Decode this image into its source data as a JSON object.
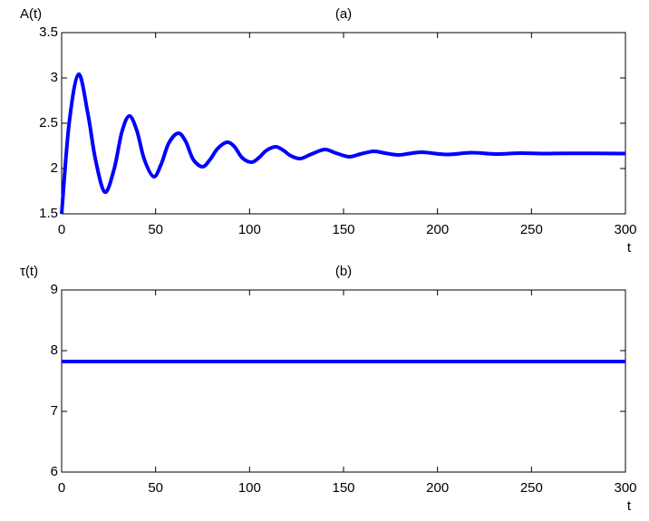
{
  "chart_data": [
    {
      "type": "line",
      "title": "(a)",
      "ylabel": "A(t)",
      "xlabel": "t",
      "xlim": [
        0,
        300
      ],
      "xticks": [
        0,
        50,
        100,
        150,
        200,
        250,
        300
      ],
      "ylim": [
        1.5,
        3.5
      ],
      "yticks": [
        1.5,
        2,
        2.5,
        3,
        3.5
      ],
      "series": [
        {
          "name": "A(t)",
          "color": "#0000ff",
          "x": [
            0,
            4,
            9,
            14,
            18,
            23,
            28,
            32,
            36,
            40,
            44,
            49,
            53,
            57,
            62,
            66,
            70,
            75,
            79,
            83,
            88,
            92,
            96,
            101,
            105,
            109,
            114,
            118,
            122,
            127,
            133,
            140,
            146,
            153,
            159,
            166,
            172,
            179,
            185,
            192,
            205,
            218,
            231,
            244,
            257,
            270,
            300
          ],
          "values": [
            1.5,
            2.5,
            3.04,
            2.6,
            2.1,
            1.74,
            2.0,
            2.4,
            2.58,
            2.42,
            2.1,
            1.91,
            2.05,
            2.28,
            2.39,
            2.3,
            2.1,
            2.02,
            2.1,
            2.22,
            2.29,
            2.24,
            2.12,
            2.07,
            2.12,
            2.2,
            2.24,
            2.2,
            2.14,
            2.11,
            2.16,
            2.21,
            2.17,
            2.13,
            2.16,
            2.19,
            2.17,
            2.15,
            2.165,
            2.18,
            2.155,
            2.175,
            2.16,
            2.17,
            2.165,
            2.168,
            2.165
          ]
        }
      ]
    },
    {
      "type": "line",
      "title": "(b)",
      "ylabel": "τ(t)",
      "xlabel": "t",
      "xlim": [
        0,
        300
      ],
      "xticks": [
        0,
        50,
        100,
        150,
        200,
        250,
        300
      ],
      "ylim": [
        6,
        9
      ],
      "yticks": [
        6,
        7,
        8,
        9
      ],
      "series": [
        {
          "name": "τ(t)",
          "color": "#0000ff",
          "x": [
            0,
            300
          ],
          "values": [
            7.82,
            7.82
          ]
        }
      ]
    }
  ]
}
